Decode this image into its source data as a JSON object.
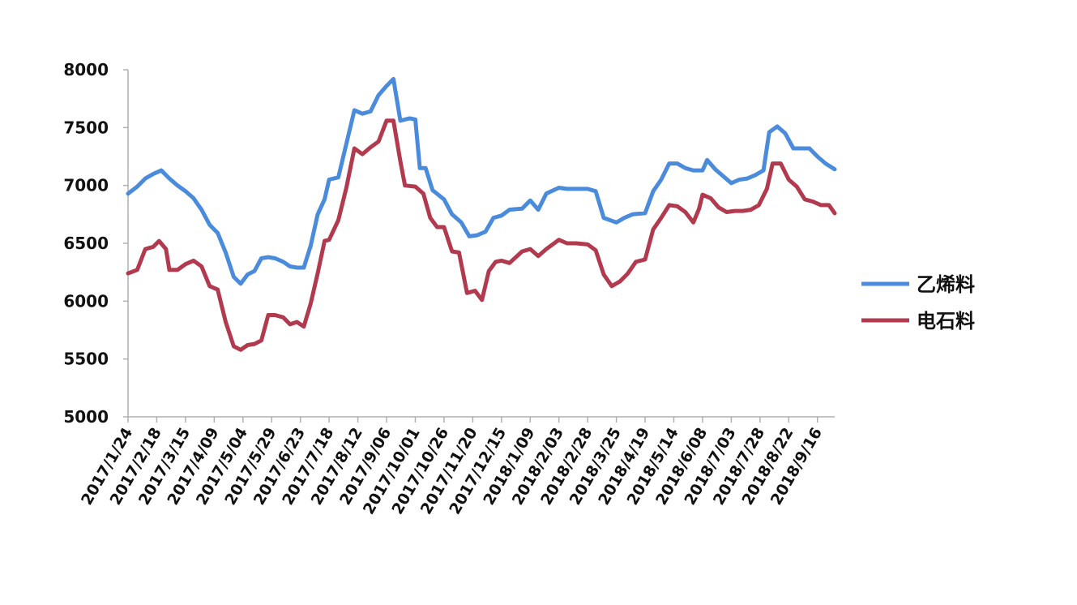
{
  "chart_data": {
    "type": "line",
    "ylim": [
      5000,
      8000
    ],
    "yticks": [
      5000,
      5500,
      6000,
      6500,
      7000,
      7500,
      8000
    ],
    "x_tick_labels": [
      "2017/1/24",
      "2017/2/18",
      "2017/3/15",
      "2017/4/09",
      "2017/5/04",
      "2017/5/29",
      "2017/6/23",
      "2017/7/18",
      "2017/8/12",
      "2017/9/06",
      "2017/10/01",
      "2017/10/26",
      "2017/11/20",
      "2017/12/15",
      "2018/1/09",
      "2018/2/03",
      "2018/2/28",
      "2018/3/25",
      "2018/4/19",
      "2018/5/14",
      "2018/6/08",
      "2018/7/03",
      "2018/7/28",
      "2018/8/22",
      "2018/9/16"
    ],
    "x_start": "2017/1/24",
    "x_end": "2018/10/01",
    "legend_position": "right",
    "grid": false,
    "series": [
      {
        "name": "乙烯料",
        "color": "#4a8bdc",
        "points": [
          [
            "2017/1/24",
            6930
          ],
          [
            "2017/2/01",
            6990
          ],
          [
            "2017/2/08",
            7060
          ],
          [
            "2017/2/15",
            7100
          ],
          [
            "2017/2/22",
            7130
          ],
          [
            "2017/3/01",
            7060
          ],
          [
            "2017/3/08",
            7000
          ],
          [
            "2017/3/15",
            6950
          ],
          [
            "2017/3/22",
            6890
          ],
          [
            "2017/3/29",
            6790
          ],
          [
            "2017/4/05",
            6660
          ],
          [
            "2017/4/12",
            6590
          ],
          [
            "2017/4/19",
            6420
          ],
          [
            "2017/4/26",
            6210
          ],
          [
            "2017/5/02",
            6150
          ],
          [
            "2017/5/08",
            6230
          ],
          [
            "2017/5/14",
            6260
          ],
          [
            "2017/5/20",
            6370
          ],
          [
            "2017/5/26",
            6380
          ],
          [
            "2017/6/01",
            6370
          ],
          [
            "2017/6/08",
            6340
          ],
          [
            "2017/6/14",
            6300
          ],
          [
            "2017/6/20",
            6290
          ],
          [
            "2017/6/26",
            6290
          ],
          [
            "2017/7/02",
            6480
          ],
          [
            "2017/7/08",
            6750
          ],
          [
            "2017/7/14",
            6880
          ],
          [
            "2017/7/18",
            7050
          ],
          [
            "2017/7/26",
            7070
          ],
          [
            "2017/8/02",
            7360
          ],
          [
            "2017/8/09",
            7650
          ],
          [
            "2017/8/16",
            7620
          ],
          [
            "2017/8/23",
            7640
          ],
          [
            "2017/8/30",
            7780
          ],
          [
            "2017/9/06",
            7860
          ],
          [
            "2017/9/12",
            7920
          ],
          [
            "2017/9/18",
            7560
          ],
          [
            "2017/9/26",
            7580
          ],
          [
            "2017/10/01",
            7570
          ],
          [
            "2017/10/05",
            7150
          ],
          [
            "2017/10/10",
            7150
          ],
          [
            "2017/10/16",
            6960
          ],
          [
            "2017/10/26",
            6880
          ],
          [
            "2017/11/02",
            6750
          ],
          [
            "2017/11/10",
            6680
          ],
          [
            "2017/11/17",
            6560
          ],
          [
            "2017/11/24",
            6570
          ],
          [
            "2017/12/01",
            6600
          ],
          [
            "2017/12/08",
            6720
          ],
          [
            "2017/12/15",
            6740
          ],
          [
            "2017/12/22",
            6790
          ],
          [
            "2018/1/02",
            6800
          ],
          [
            "2018/1/09",
            6870
          ],
          [
            "2018/1/16",
            6790
          ],
          [
            "2018/1/23",
            6930
          ],
          [
            "2018/2/03",
            6980
          ],
          [
            "2018/2/10",
            6970
          ],
          [
            "2018/2/18",
            6970
          ],
          [
            "2018/2/28",
            6970
          ],
          [
            "2018/3/07",
            6950
          ],
          [
            "2018/3/14",
            6720
          ],
          [
            "2018/3/25",
            6680
          ],
          [
            "2018/4/01",
            6720
          ],
          [
            "2018/4/08",
            6750
          ],
          [
            "2018/4/19",
            6760
          ],
          [
            "2018/4/26",
            6950
          ],
          [
            "2018/5/03",
            7050
          ],
          [
            "2018/5/10",
            7190
          ],
          [
            "2018/5/17",
            7190
          ],
          [
            "2018/5/24",
            7150
          ],
          [
            "2018/5/31",
            7130
          ],
          [
            "2018/6/08",
            7130
          ],
          [
            "2018/6/12",
            7220
          ],
          [
            "2018/6/19",
            7140
          ],
          [
            "2018/6/26",
            7080
          ],
          [
            "2018/7/03",
            7020
          ],
          [
            "2018/7/10",
            7050
          ],
          [
            "2018/7/17",
            7060
          ],
          [
            "2018/7/24",
            7090
          ],
          [
            "2018/7/31",
            7130
          ],
          [
            "2018/8/05",
            7460
          ],
          [
            "2018/8/12",
            7510
          ],
          [
            "2018/8/19",
            7450
          ],
          [
            "2018/8/26",
            7320
          ],
          [
            "2018/9/02",
            7320
          ],
          [
            "2018/9/09",
            7320
          ],
          [
            "2018/9/16",
            7250
          ],
          [
            "2018/9/23",
            7190
          ],
          [
            "2018/10/01",
            7140
          ]
        ]
      },
      {
        "name": "电石料",
        "color": "#b23a4e",
        "points": [
          [
            "2017/1/24",
            6240
          ],
          [
            "2017/2/01",
            6270
          ],
          [
            "2017/2/08",
            6450
          ],
          [
            "2017/2/15",
            6470
          ],
          [
            "2017/2/20",
            6520
          ],
          [
            "2017/2/26",
            6450
          ],
          [
            "2017/3/01",
            6270
          ],
          [
            "2017/3/08",
            6270
          ],
          [
            "2017/3/15",
            6320
          ],
          [
            "2017/3/22",
            6350
          ],
          [
            "2017/3/29",
            6300
          ],
          [
            "2017/4/05",
            6130
          ],
          [
            "2017/4/12",
            6100
          ],
          [
            "2017/4/19",
            5820
          ],
          [
            "2017/4/26",
            5610
          ],
          [
            "2017/5/02",
            5580
          ],
          [
            "2017/5/08",
            5620
          ],
          [
            "2017/5/14",
            5630
          ],
          [
            "2017/5/20",
            5660
          ],
          [
            "2017/5/26",
            5880
          ],
          [
            "2017/6/01",
            5880
          ],
          [
            "2017/6/08",
            5860
          ],
          [
            "2017/6/14",
            5800
          ],
          [
            "2017/6/20",
            5820
          ],
          [
            "2017/6/26",
            5780
          ],
          [
            "2017/7/02",
            5980
          ],
          [
            "2017/7/08",
            6240
          ],
          [
            "2017/7/14",
            6520
          ],
          [
            "2017/7/18",
            6530
          ],
          [
            "2017/7/26",
            6700
          ],
          [
            "2017/8/02",
            6980
          ],
          [
            "2017/8/09",
            7320
          ],
          [
            "2017/8/16",
            7270
          ],
          [
            "2017/8/23",
            7330
          ],
          [
            "2017/8/30",
            7380
          ],
          [
            "2017/9/06",
            7560
          ],
          [
            "2017/9/12",
            7560
          ],
          [
            "2017/9/18",
            7210
          ],
          [
            "2017/9/22",
            7000
          ],
          [
            "2017/10/01",
            6990
          ],
          [
            "2017/10/08",
            6930
          ],
          [
            "2017/10/14",
            6720
          ],
          [
            "2017/10/20",
            6640
          ],
          [
            "2017/10/26",
            6640
          ],
          [
            "2017/11/02",
            6430
          ],
          [
            "2017/11/08",
            6420
          ],
          [
            "2017/11/15",
            6070
          ],
          [
            "2017/11/22",
            6090
          ],
          [
            "2017/11/28",
            6010
          ],
          [
            "2017/12/04",
            6260
          ],
          [
            "2017/12/10",
            6340
          ],
          [
            "2017/12/15",
            6350
          ],
          [
            "2017/12/22",
            6330
          ],
          [
            "2018/1/02",
            6430
          ],
          [
            "2018/1/09",
            6450
          ],
          [
            "2018/1/16",
            6390
          ],
          [
            "2018/1/23",
            6450
          ],
          [
            "2018/2/03",
            6530
          ],
          [
            "2018/2/10",
            6500
          ],
          [
            "2018/2/18",
            6500
          ],
          [
            "2018/2/28",
            6490
          ],
          [
            "2018/3/07",
            6440
          ],
          [
            "2018/3/14",
            6230
          ],
          [
            "2018/3/21",
            6130
          ],
          [
            "2018/3/28",
            6170
          ],
          [
            "2018/4/04",
            6240
          ],
          [
            "2018/4/11",
            6340
          ],
          [
            "2018/4/19",
            6360
          ],
          [
            "2018/4/26",
            6620
          ],
          [
            "2018/5/03",
            6720
          ],
          [
            "2018/5/10",
            6830
          ],
          [
            "2018/5/17",
            6820
          ],
          [
            "2018/5/24",
            6770
          ],
          [
            "2018/5/31",
            6680
          ],
          [
            "2018/6/05",
            6800
          ],
          [
            "2018/6/08",
            6920
          ],
          [
            "2018/6/15",
            6890
          ],
          [
            "2018/6/22",
            6810
          ],
          [
            "2018/6/29",
            6770
          ],
          [
            "2018/7/06",
            6780
          ],
          [
            "2018/7/13",
            6780
          ],
          [
            "2018/7/20",
            6790
          ],
          [
            "2018/7/27",
            6830
          ],
          [
            "2018/8/03",
            6970
          ],
          [
            "2018/8/08",
            7190
          ],
          [
            "2018/8/15",
            7190
          ],
          [
            "2018/8/22",
            7050
          ],
          [
            "2018/8/29",
            6990
          ],
          [
            "2018/9/05",
            6880
          ],
          [
            "2018/9/12",
            6860
          ],
          [
            "2018/9/19",
            6830
          ],
          [
            "2018/9/26",
            6830
          ],
          [
            "2018/10/01",
            6760
          ]
        ]
      }
    ]
  }
}
